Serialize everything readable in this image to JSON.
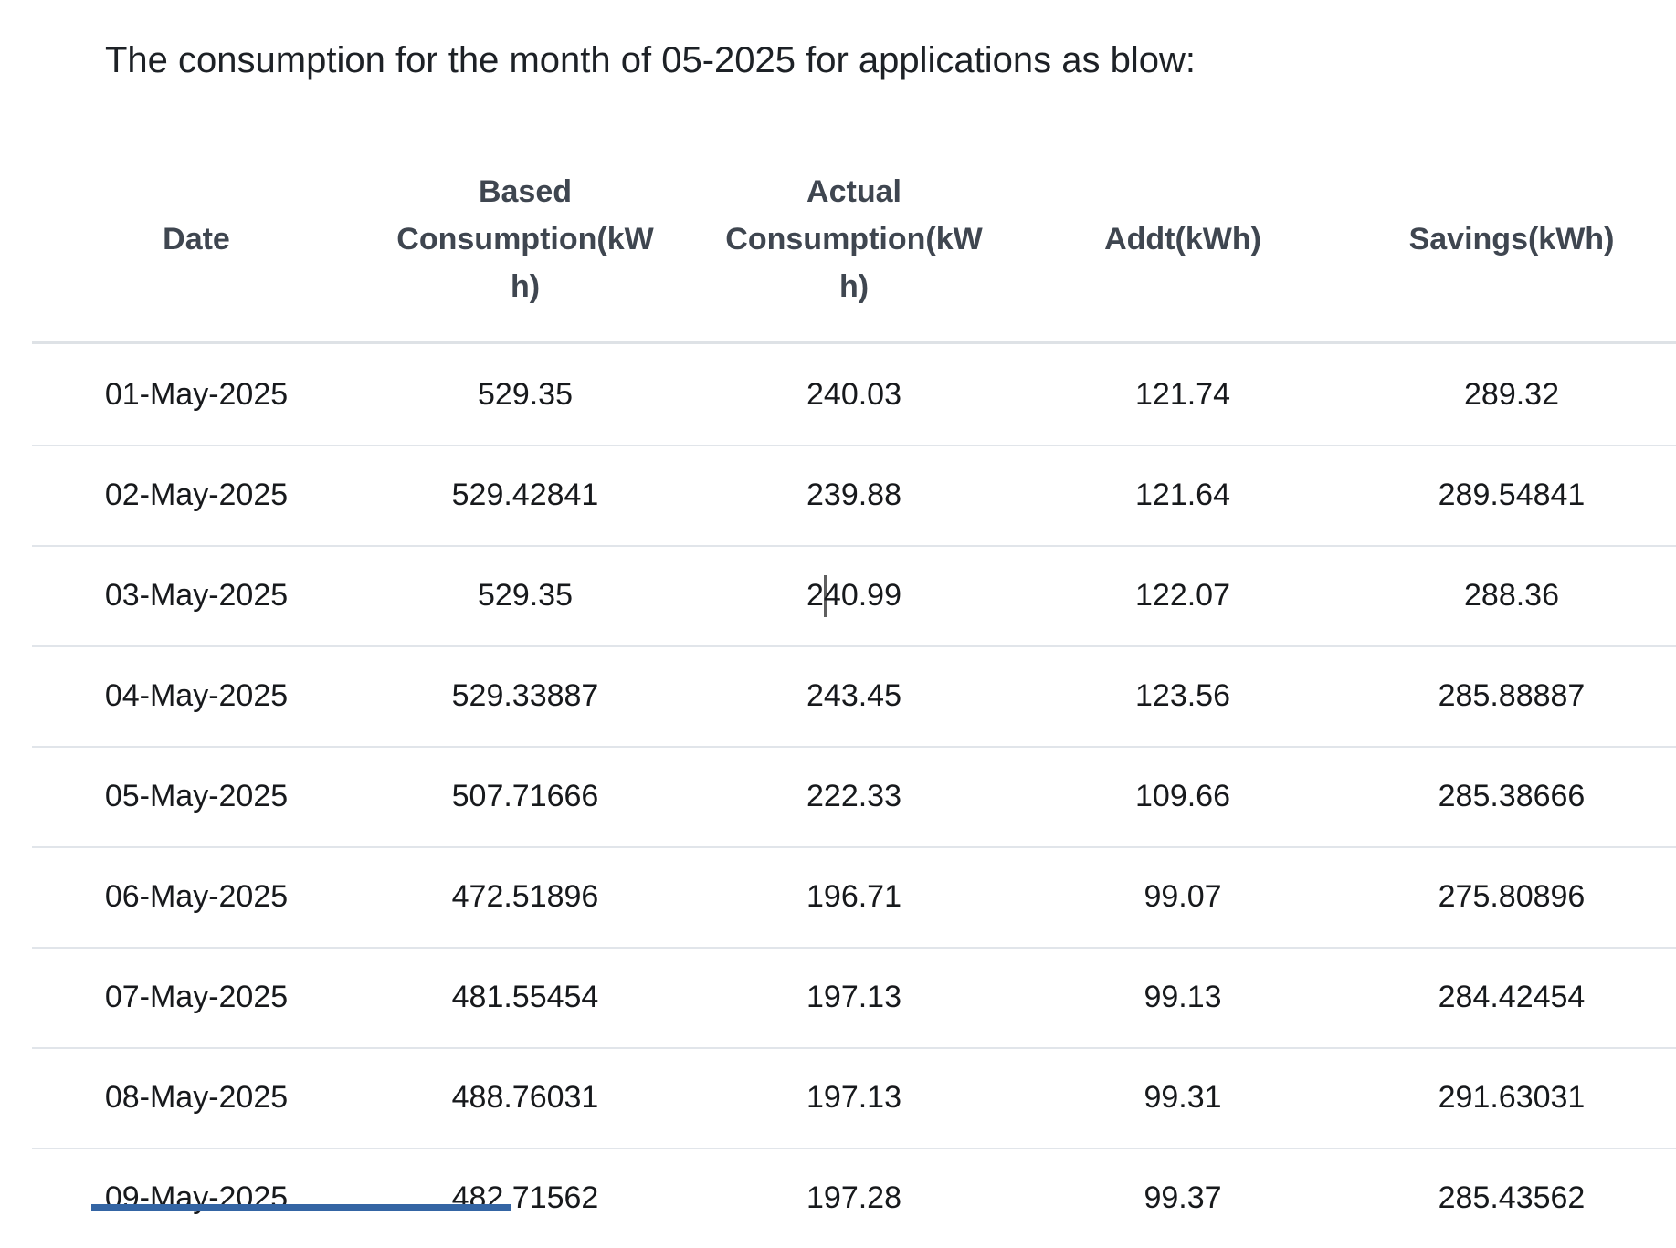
{
  "title": "The consumption for the month of 05-2025 for applications as blow:",
  "table": {
    "columns": [
      {
        "id": "date",
        "label": "Date",
        "lines": [
          "Date"
        ]
      },
      {
        "id": "based",
        "label": "Based Consumption(kWh)",
        "lines": [
          "Based",
          "Consumption(kW",
          "h)"
        ]
      },
      {
        "id": "actual",
        "label": "Actual Consumption(kWh)",
        "lines": [
          "Actual",
          "Consumption(kW",
          "h)"
        ]
      },
      {
        "id": "addt",
        "label": "Addt(kWh)",
        "lines": [
          "Addt(kWh)"
        ]
      },
      {
        "id": "savings",
        "label": "Savings(kWh)",
        "lines": [
          "Savings(kWh)"
        ]
      }
    ],
    "rows": [
      {
        "date": "01-May-2025",
        "based": "529.35",
        "actual": "240.03",
        "addt": "121.74",
        "savings": "289.32"
      },
      {
        "date": "02-May-2025",
        "based": "529.42841",
        "actual": "239.88",
        "addt": "121.64",
        "savings": "289.54841"
      },
      {
        "date": "03-May-2025",
        "based": "529.35",
        "actual": "240.99",
        "addt": "122.07",
        "savings": "288.36"
      },
      {
        "date": "04-May-2025",
        "based": "529.33887",
        "actual": "243.45",
        "addt": "123.56",
        "savings": "285.88887"
      },
      {
        "date": "05-May-2025",
        "based": "507.71666",
        "actual": "222.33",
        "addt": "109.66",
        "savings": "285.38666"
      },
      {
        "date": "06-May-2025",
        "based": "472.51896",
        "actual": "196.71",
        "addt": "99.07",
        "savings": "275.80896"
      },
      {
        "date": "07-May-2025",
        "based": "481.55454",
        "actual": "197.13",
        "addt": "99.13",
        "savings": "284.42454"
      },
      {
        "date": "08-May-2025",
        "based": "488.76031",
        "actual": "197.13",
        "addt": "99.31",
        "savings": "291.63031"
      },
      {
        "date": "09-May-2025",
        "based": "482.71562",
        "actual": "197.28",
        "addt": "99.37",
        "savings": "285.43562"
      }
    ]
  },
  "editing": {
    "row_date": "03-May-2025",
    "column": "actual",
    "caret_after_text": "2"
  },
  "colors": {
    "row_border": "#e1e5ea",
    "header_text": "#3f4650",
    "body_text": "#17191c",
    "caret": "#5f5f5f",
    "bottom_bar": "#3465a4"
  }
}
